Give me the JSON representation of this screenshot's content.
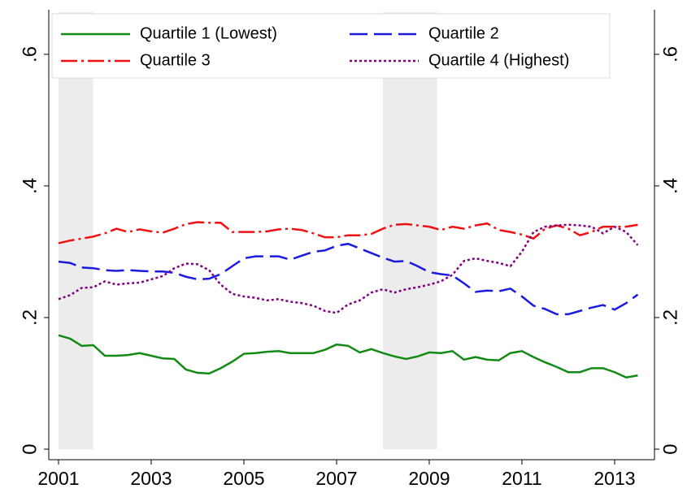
{
  "chart_data": {
    "type": "line",
    "x": [
      2001,
      2001.25,
      2001.5,
      2001.75,
      2002,
      2002.25,
      2002.5,
      2002.75,
      2003,
      2003.25,
      2003.5,
      2003.75,
      2004,
      2004.25,
      2004.5,
      2004.75,
      2005,
      2005.25,
      2005.5,
      2005.75,
      2006,
      2006.25,
      2006.5,
      2006.75,
      2007,
      2007.25,
      2007.5,
      2007.75,
      2008,
      2008.25,
      2008.5,
      2008.75,
      2009,
      2009.25,
      2009.5,
      2009.75,
      2010,
      2010.25,
      2010.5,
      2010.75,
      2011,
      2011.25,
      2011.5,
      2011.75,
      2012,
      2012.25,
      2012.5,
      2012.75,
      2013,
      2013.25,
      2013.5
    ],
    "series": [
      {
        "name": "Quartile 1 (Lowest)",
        "color": "#138a13",
        "values": [
          0.173,
          0.168,
          0.157,
          0.158,
          0.142,
          0.142,
          0.143,
          0.146,
          0.142,
          0.138,
          0.137,
          0.121,
          0.116,
          0.115,
          0.123,
          0.133,
          0.145,
          0.146,
          0.148,
          0.149,
          0.146,
          0.146,
          0.146,
          0.151,
          0.159,
          0.157,
          0.147,
          0.152,
          0.146,
          0.141,
          0.137,
          0.141,
          0.147,
          0.146,
          0.149,
          0.136,
          0.14,
          0.136,
          0.135,
          0.146,
          0.149,
          0.14,
          0.132,
          0.125,
          0.117,
          0.117,
          0.123,
          0.123,
          0.117,
          0.109,
          0.112
        ]
      },
      {
        "name": "Quartile 2",
        "color": "#1a1ae0",
        "values": [
          0.285,
          0.283,
          0.276,
          0.275,
          0.272,
          0.271,
          0.272,
          0.271,
          0.27,
          0.27,
          0.268,
          0.262,
          0.258,
          0.259,
          0.266,
          0.278,
          0.29,
          0.293,
          0.293,
          0.293,
          0.288,
          0.294,
          0.3,
          0.302,
          0.309,
          0.312,
          0.305,
          0.298,
          0.291,
          0.285,
          0.286,
          0.278,
          0.269,
          0.266,
          0.264,
          0.252,
          0.239,
          0.241,
          0.24,
          0.244,
          0.232,
          0.218,
          0.213,
          0.205,
          0.205,
          0.21,
          0.215,
          0.219,
          0.212,
          0.222,
          0.235
        ]
      },
      {
        "name": "Quartile 3",
        "color": "#ee1111",
        "values": [
          0.313,
          0.317,
          0.32,
          0.323,
          0.328,
          0.335,
          0.33,
          0.334,
          0.331,
          0.329,
          0.335,
          0.342,
          0.345,
          0.344,
          0.344,
          0.33,
          0.33,
          0.33,
          0.331,
          0.334,
          0.335,
          0.333,
          0.328,
          0.322,
          0.322,
          0.325,
          0.325,
          0.327,
          0.335,
          0.341,
          0.342,
          0.34,
          0.338,
          0.333,
          0.338,
          0.335,
          0.34,
          0.343,
          0.333,
          0.33,
          0.326,
          0.32,
          0.335,
          0.34,
          0.335,
          0.325,
          0.33,
          0.338,
          0.338,
          0.338,
          0.341
        ]
      },
      {
        "name": "Quartile 4 (Highest)",
        "color": "#800080",
        "values": [
          0.228,
          0.234,
          0.245,
          0.246,
          0.255,
          0.25,
          0.252,
          0.253,
          0.258,
          0.263,
          0.275,
          0.282,
          0.281,
          0.272,
          0.25,
          0.236,
          0.232,
          0.23,
          0.226,
          0.228,
          0.224,
          0.222,
          0.218,
          0.21,
          0.207,
          0.22,
          0.226,
          0.238,
          0.243,
          0.238,
          0.243,
          0.246,
          0.25,
          0.255,
          0.265,
          0.286,
          0.29,
          0.286,
          0.283,
          0.278,
          0.3,
          0.33,
          0.338,
          0.34,
          0.341,
          0.34,
          0.338,
          0.328,
          0.338,
          0.33,
          0.31
        ]
      }
    ],
    "shaded": [
      [
        2001,
        2001.75
      ],
      [
        2008,
        2009.17
      ]
    ],
    "xlim": [
      2000.79,
      2013.86
    ],
    "xticks": [
      2001,
      2003,
      2005,
      2007,
      2009,
      2011,
      2013
    ],
    "ylim": [
      -0.016,
      0.664
    ],
    "yticks": [
      0,
      {
        "value": 0.2,
        "label": ".2"
      },
      {
        "value": 0.4,
        "label": ".4"
      },
      {
        "value": 0.6,
        "label": ".6"
      }
    ],
    "grid": false
  }
}
